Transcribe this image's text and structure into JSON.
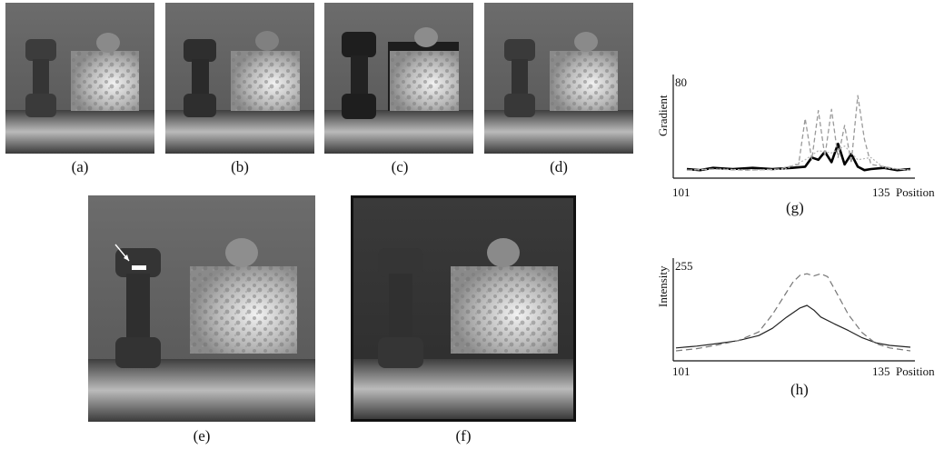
{
  "figure": {
    "captions": {
      "a": "(a)",
      "b": "(b)",
      "c": "(c)",
      "d": "(d)",
      "e": "(e)",
      "f": "(f)",
      "g": "(g)",
      "h": "(h)"
    }
  },
  "chart_data": [
    {
      "type": "line",
      "panel": "(g)",
      "ylabel": "Gradient",
      "xlabel": "Position",
      "y_tick_label": "80",
      "x_tick_labels": [
        "101",
        "135"
      ],
      "xlim": [
        101,
        135
      ],
      "ylim": [
        0,
        80
      ],
      "series": [
        {
          "style": "solid-bold",
          "x": [
            101,
            103,
            105,
            108,
            111,
            114,
            117,
            119,
            120,
            121,
            122,
            123,
            124,
            125,
            126,
            127,
            128,
            129,
            131,
            133,
            135
          ],
          "y": [
            4,
            3,
            5,
            4,
            5,
            4,
            5,
            6,
            14,
            12,
            19,
            10,
            26,
            8,
            17,
            6,
            3,
            4,
            5,
            3,
            4
          ]
        },
        {
          "style": "dashed-gray",
          "x": [
            101,
            105,
            110,
            115,
            118,
            119,
            120,
            121,
            122,
            123,
            124,
            125,
            126,
            127,
            128,
            129,
            131,
            133,
            135
          ],
          "y": [
            3,
            4,
            3,
            4,
            8,
            48,
            12,
            55,
            15,
            56,
            14,
            42,
            9,
            68,
            30,
            8,
            6,
            4,
            3
          ]
        },
        {
          "style": "dotted-gray",
          "x": [
            101,
            106,
            111,
            116,
            119,
            121,
            123,
            125,
            127,
            129,
            131,
            135
          ],
          "y": [
            3,
            4,
            3,
            4,
            12,
            20,
            18,
            24,
            12,
            14,
            5,
            3
          ]
        }
      ]
    },
    {
      "type": "line",
      "panel": "(h)",
      "ylabel": "Intensity",
      "xlabel": "Position",
      "y_tick_label": "255",
      "x_tick_labels": [
        "101",
        "135"
      ],
      "xlim": [
        101,
        135
      ],
      "ylim": [
        0,
        255
      ],
      "series": [
        {
          "style": "solid",
          "x": [
            101,
            104,
            107,
            110,
            113,
            115,
            117,
            119,
            120,
            121,
            122,
            124,
            126,
            128,
            130,
            132,
            135
          ],
          "y": [
            28,
            33,
            40,
            48,
            62,
            82,
            112,
            138,
            145,
            132,
            113,
            94,
            76,
            56,
            42,
            35,
            30
          ]
        },
        {
          "style": "dashed",
          "x": [
            101,
            104,
            107,
            110,
            113,
            115,
            117,
            118,
            119,
            120,
            121,
            122,
            123,
            124,
            126,
            128,
            130,
            132,
            135
          ],
          "y": [
            20,
            26,
            36,
            48,
            72,
            120,
            180,
            210,
            228,
            232,
            226,
            232,
            224,
            190,
            120,
            70,
            40,
            28,
            20
          ]
        }
      ]
    }
  ]
}
